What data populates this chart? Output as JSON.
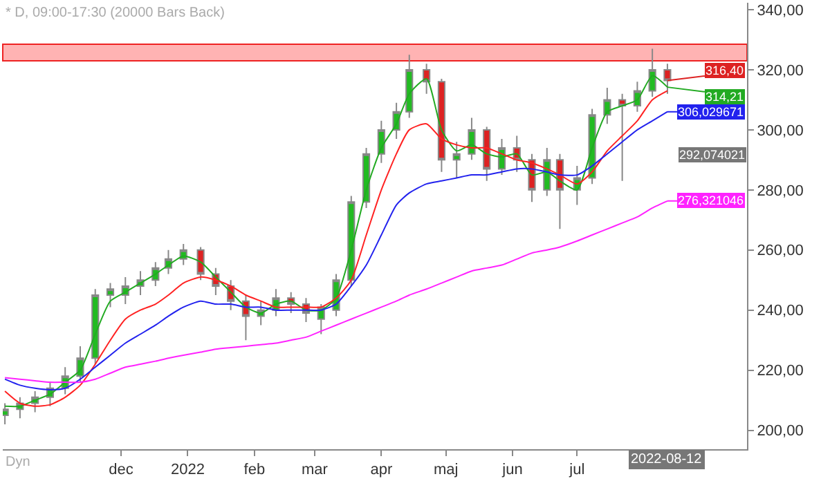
{
  "chart_data": {
    "type": "candlestick",
    "title": "* D, 09:00-17:30 (20000 Bars Back)",
    "x": [
      "2021-10-08",
      "2021-10-15",
      "2021-10-22",
      "2021-10-29",
      "2021-11-05",
      "2021-11-12",
      "2021-11-19",
      "2021-11-26",
      "2021-12-03",
      "2021-12-10",
      "2021-12-17",
      "2021-12-23",
      "2021-12-30",
      "2022-01-07",
      "2022-01-14",
      "2022-01-21",
      "2022-01-28",
      "2022-02-04",
      "2022-02-11",
      "2022-02-18",
      "2022-02-25",
      "2022-03-04",
      "2022-03-11",
      "2022-03-18",
      "2022-03-25",
      "2022-04-01",
      "2022-04-08",
      "2022-04-14",
      "2022-04-22",
      "2022-04-29",
      "2022-05-06",
      "2022-05-13",
      "2022-05-20",
      "2022-05-27",
      "2022-06-03",
      "2022-06-10",
      "2022-06-17",
      "2022-06-23",
      "2022-07-01",
      "2022-07-08",
      "2022-07-15",
      "2022-07-22",
      "2022-07-29",
      "2022-08-05",
      "2022-08-12"
    ],
    "series": [
      {
        "colors": [
          "#22bb22",
          "#22bb22",
          "#22bb22",
          "#22bb22",
          "#22bb22",
          "#22bb22",
          "#22bb22",
          "#22bb22",
          "#22bb22",
          "#22bb22",
          "#22bb22",
          "#22bb22",
          "#22bb22",
          "#dd2222",
          "#dd2222",
          "#dd2222",
          "#dd2222",
          "#22bb22",
          "#22bb22",
          "#dd2222",
          "#dd2222",
          "#22bb22",
          "#22bb22",
          "#22bb22",
          "#22bb22",
          "#22bb22",
          "#22bb22",
          "#22bb22",
          "#dd2222",
          "#dd2222",
          "#22bb22",
          "#22bb22",
          "#dd2222",
          "#22bb22",
          "#dd2222",
          "#dd2222",
          "#22bb22",
          "#dd2222",
          "#22bb22",
          "#22bb22",
          "#22bb22",
          "#dd2222",
          "#22bb22",
          "#22bb22",
          "#dd2222"
        ],
        "ohlc": [
          [
            205,
            209,
            202,
            207
          ],
          [
            207,
            211,
            204,
            209
          ],
          [
            209,
            213,
            206,
            211
          ],
          [
            211,
            216,
            208,
            214
          ],
          [
            214,
            221,
            212,
            218
          ],
          [
            218,
            228,
            216,
            224
          ],
          [
            224,
            247,
            222,
            245
          ],
          [
            245,
            249,
            241,
            247
          ],
          [
            245,
            251,
            242,
            248
          ],
          [
            248,
            253,
            245,
            250
          ],
          [
            250,
            256,
            248,
            254
          ],
          [
            254,
            260,
            252,
            257
          ],
          [
            257,
            262,
            255,
            260
          ],
          [
            260,
            261,
            250,
            252
          ],
          [
            252,
            254,
            245,
            248
          ],
          [
            248,
            250,
            240,
            243
          ],
          [
            243,
            245,
            230,
            238
          ],
          [
            238,
            243,
            235,
            240
          ],
          [
            240,
            247,
            238,
            244
          ],
          [
            244,
            246,
            239,
            242
          ],
          [
            242,
            244,
            236,
            239
          ],
          [
            237,
            242,
            232,
            241
          ],
          [
            240,
            252,
            238,
            250
          ],
          [
            250,
            278,
            248,
            276
          ],
          [
            276,
            294,
            274,
            292
          ],
          [
            292,
            303,
            289,
            300
          ],
          [
            300,
            309,
            297,
            306
          ],
          [
            306,
            325,
            304,
            320
          ],
          [
            320,
            322,
            312,
            316
          ],
          [
            316,
            317,
            286,
            290
          ],
          [
            290,
            296,
            284,
            292
          ],
          [
            292,
            304,
            290,
            300
          ],
          [
            300,
            301,
            283,
            287
          ],
          [
            287,
            297,
            285,
            294
          ],
          [
            294,
            298,
            286,
            290
          ],
          [
            290,
            292,
            276,
            280
          ],
          [
            280,
            294,
            278,
            290
          ],
          [
            290,
            292,
            267,
            280
          ],
          [
            280,
            288,
            275,
            284
          ],
          [
            284,
            307,
            282,
            305
          ],
          [
            305,
            314,
            302,
            310
          ],
          [
            310,
            312,
            283,
            308
          ],
          [
            308,
            316,
            306,
            313
          ],
          [
            313,
            327,
            311,
            320
          ],
          [
            320,
            322,
            312,
            316.4
          ]
        ]
      },
      {
        "type": "line",
        "color": "#22aa22",
        "values": [
          208,
          208,
          210,
          212,
          216,
          220,
          232,
          243,
          246,
          249,
          252,
          255,
          258,
          256,
          251,
          246,
          241,
          239,
          242,
          243,
          240,
          240,
          244,
          260,
          280,
          294,
          302,
          312,
          317,
          300,
          293,
          295,
          292,
          291,
          292,
          285,
          286,
          283,
          280,
          294,
          306,
          308,
          310,
          318,
          314.21
        ]
      },
      {
        "type": "line",
        "color": "#ff2222",
        "values": [
          213,
          209,
          208,
          208.5,
          211,
          215,
          222,
          230,
          237,
          240,
          242,
          245,
          249,
          251,
          250,
          248,
          245,
          243,
          241,
          241,
          241,
          241,
          244,
          250,
          265,
          280,
          292,
          300,
          302,
          297,
          295,
          294,
          294,
          292,
          290,
          289,
          287,
          285,
          282,
          286,
          293,
          298,
          303,
          310,
          313
        ]
      },
      {
        "type": "line",
        "color": "#2222ee",
        "values": [
          217,
          215,
          214,
          213.5,
          214,
          217,
          221,
          225,
          229,
          232,
          235,
          238,
          241,
          243,
          242,
          242,
          241,
          241,
          240,
          240,
          240,
          240,
          242,
          248,
          255,
          265,
          275,
          279,
          282,
          283,
          284,
          285,
          285,
          286,
          287,
          287,
          286,
          285,
          285,
          288,
          292,
          296,
          300,
          303,
          306.03
        ]
      },
      {
        "type": "line",
        "color": "#ff22ff",
        "values": [
          217.5,
          217,
          216.5,
          216,
          216,
          216,
          217,
          219,
          221,
          222,
          223,
          224,
          225,
          226,
          227,
          227.5,
          228,
          228.5,
          229,
          230,
          231,
          233,
          235,
          237,
          239,
          241,
          243,
          245,
          247,
          249,
          251,
          253,
          254,
          255,
          257,
          259,
          260,
          261,
          263,
          265,
          267,
          269,
          271,
          274,
          276.32
        ]
      }
    ],
    "xlim": [
      "2021-10-07",
      "2022-09-18"
    ],
    "xticks": [
      {
        "value": "2021-12-01",
        "label": "dec"
      },
      {
        "value": "2022-01-01",
        "label": "2022"
      },
      {
        "value": "2022-02-01",
        "label": "feb"
      },
      {
        "value": "2022-03-01",
        "label": "mar"
      },
      {
        "value": "2022-04-01",
        "label": "apr"
      },
      {
        "value": "2022-05-01",
        "label": "maj"
      },
      {
        "value": "2022-06-01",
        "label": "jun"
      },
      {
        "value": "2022-07-01",
        "label": "jul"
      },
      {
        "value": "2022-08-01",
        "label": null
      }
    ],
    "ylim": [
      193.7,
      342.3
    ],
    "yticks": [
      {
        "value": 200,
        "label": "200,00"
      },
      {
        "value": 220,
        "label": "220,00"
      },
      {
        "value": 240,
        "label": "240,00"
      },
      {
        "value": 260,
        "label": "260,00"
      },
      {
        "value": 280,
        "label": "280,00"
      },
      {
        "value": 300,
        "label": "300,00"
      },
      {
        "value": 320,
        "label": "320,00"
      },
      {
        "value": 340,
        "label": "340,00"
      }
    ],
    "bands": [
      {
        "axis": "y",
        "from": 323,
        "to": 328.5,
        "color": "#ffb3b3"
      }
    ],
    "annotations": [
      "2022-08-12",
      "Dyn",
      {
        "text": "316,40",
        "x": "2022-08-12",
        "y": 316.4
      },
      {
        "text": "314,21",
        "x": "2022-08-12",
        "y": 314.21
      },
      {
        "text": "306,029671",
        "x": "2022-08-12",
        "y": 306.03
      },
      "292,074021",
      {
        "text": "276,321046",
        "x": "2022-08-12",
        "y": 276.32
      }
    ]
  }
}
